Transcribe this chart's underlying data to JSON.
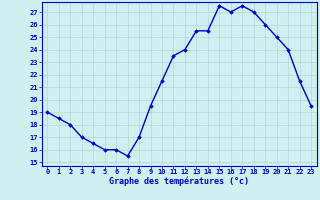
{
  "hours": [
    0,
    1,
    2,
    3,
    4,
    5,
    6,
    7,
    8,
    9,
    10,
    11,
    12,
    13,
    14,
    15,
    16,
    17,
    18,
    19,
    20,
    21,
    22,
    23
  ],
  "temps": [
    19.0,
    18.5,
    18.0,
    17.0,
    16.5,
    16.0,
    16.0,
    15.5,
    17.0,
    19.5,
    21.5,
    23.5,
    24.0,
    25.5,
    25.5,
    27.5,
    27.0,
    27.5,
    27.0,
    26.0,
    25.0,
    24.0,
    21.5,
    19.5
  ],
  "line_color": "#0000cc",
  "marker": "D",
  "marker_size": 1.8,
  "bg_color": "#cff0f0",
  "grid_color": "#b0d8d8",
  "xlabel": "Graphe des températures (°c)",
  "xlabel_color": "#0000cc",
  "tick_color": "#0000cc",
  "axis_color": "#0000cc",
  "yticks": [
    15,
    16,
    17,
    18,
    19,
    20,
    21,
    22,
    23,
    24,
    25,
    26,
    27
  ],
  "xticks": [
    0,
    1,
    2,
    3,
    4,
    5,
    6,
    7,
    8,
    9,
    10,
    11,
    12,
    13,
    14,
    15,
    16,
    17,
    18,
    19,
    20,
    21,
    22,
    23
  ],
  "line_width": 1.0,
  "tick_fontsize": 5.0,
  "xlabel_fontsize": 6.0
}
